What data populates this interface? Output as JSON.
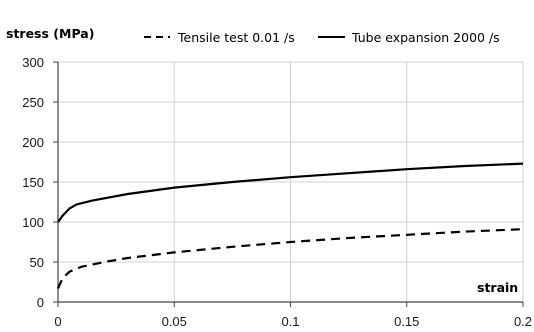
{
  "chart_data": {
    "type": "line",
    "ylabel": "stress (MPa)",
    "xlabel": "strain",
    "xlim": [
      0,
      0.2
    ],
    "ylim": [
      0,
      300
    ],
    "x_ticks": [
      "0",
      "0.05",
      "0.1",
      "0.15",
      "0.2"
    ],
    "y_ticks": [
      "0",
      "50",
      "100",
      "150",
      "200",
      "250",
      "300"
    ],
    "grid": true,
    "legend_position": "top",
    "series": [
      {
        "name": "Tensile test 0.01 /s",
        "style": "dashed",
        "color": "#000000",
        "points": [
          [
            0,
            17
          ],
          [
            0.002,
            30
          ],
          [
            0.005,
            38
          ],
          [
            0.01,
            44
          ],
          [
            0.02,
            50
          ],
          [
            0.03,
            55
          ],
          [
            0.05,
            62
          ],
          [
            0.075,
            69
          ],
          [
            0.1,
            75
          ],
          [
            0.125,
            80
          ],
          [
            0.15,
            84
          ],
          [
            0.175,
            88
          ],
          [
            0.2,
            91
          ]
        ]
      },
      {
        "name": "Tube expansion 2000 /s",
        "style": "solid",
        "color": "#000000",
        "points": [
          [
            0,
            100
          ],
          [
            0.002,
            108
          ],
          [
            0.005,
            117
          ],
          [
            0.008,
            122
          ],
          [
            0.015,
            127
          ],
          [
            0.03,
            135
          ],
          [
            0.05,
            143
          ],
          [
            0.075,
            150
          ],
          [
            0.1,
            156
          ],
          [
            0.125,
            161
          ],
          [
            0.15,
            166
          ],
          [
            0.175,
            170
          ],
          [
            0.2,
            173
          ]
        ]
      }
    ]
  }
}
